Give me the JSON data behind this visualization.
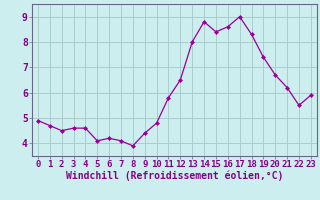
{
  "x": [
    0,
    1,
    2,
    3,
    4,
    5,
    6,
    7,
    8,
    9,
    10,
    11,
    12,
    13,
    14,
    15,
    16,
    17,
    18,
    19,
    20,
    21,
    22,
    23
  ],
  "y": [
    4.9,
    4.7,
    4.5,
    4.6,
    4.6,
    4.1,
    4.2,
    4.1,
    3.9,
    4.4,
    4.8,
    5.8,
    6.5,
    8.0,
    8.8,
    8.4,
    8.6,
    9.0,
    8.3,
    7.4,
    6.7,
    6.2,
    5.5,
    5.9
  ],
  "line_color": "#990099",
  "marker": "D",
  "marker_size": 2,
  "bg_color": "#cceeee",
  "grid_color": "#aacccc",
  "xlabel": "Windchill (Refroidissement éolien,°C)",
  "xlabel_color": "#880088",
  "ylabel_ticks": [
    4,
    5,
    6,
    7,
    8,
    9
  ],
  "xlim": [
    -0.5,
    23.5
  ],
  "ylim": [
    3.5,
    9.5
  ],
  "axis_label_fontsize": 7,
  "tick_fontsize": 6.5
}
